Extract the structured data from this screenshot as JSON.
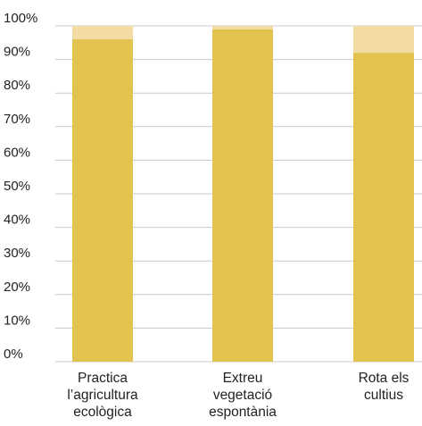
{
  "chart_data": {
    "type": "bar",
    "stacked": true,
    "categories": [
      [
        "Practica",
        "l’agricultura",
        "ecològica"
      ],
      [
        "Extreu",
        "vegetació",
        "espontània"
      ],
      [
        "Rota els",
        "cultius"
      ]
    ],
    "series": [
      {
        "values": [
          96,
          99,
          92
        ],
        "color": "#e3c350"
      },
      {
        "values": [
          4,
          1,
          8
        ],
        "color": "#f2dca3"
      }
    ],
    "yticks": [
      "0%",
      "10%",
      "20%",
      "30%",
      "40%",
      "50%",
      "60%",
      "70%",
      "80%",
      "90%",
      "100%"
    ],
    "ylim": [
      0,
      100
    ],
    "grid": true,
    "legend": "none"
  }
}
